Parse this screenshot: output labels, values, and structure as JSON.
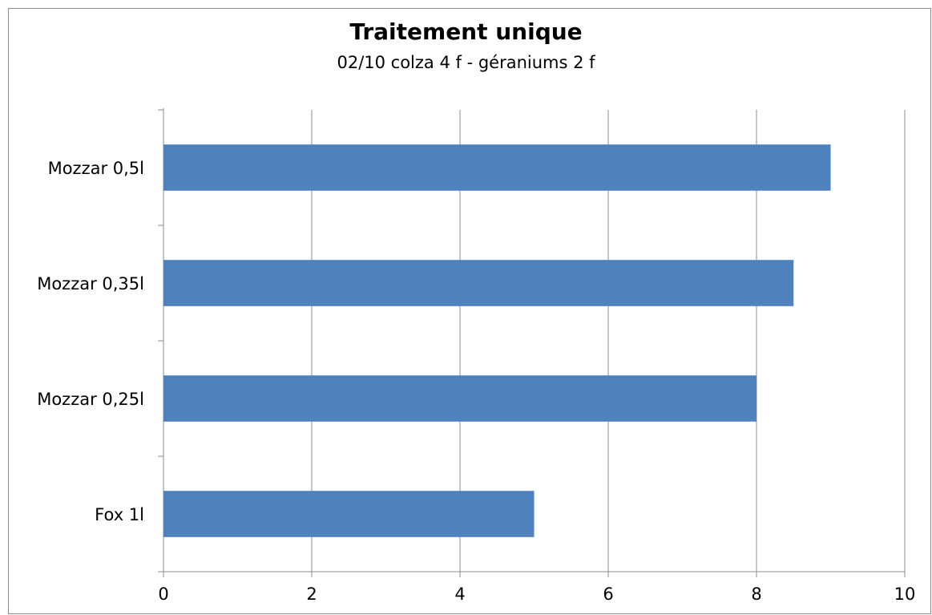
{
  "chart_data": {
    "type": "bar",
    "orientation": "horizontal",
    "title": "Traitement unique",
    "subtitle": "02/10 colza 4 f - géraniums 2 f",
    "categories": [
      "Mozzar 0,5l",
      "Mozzar 0,35l",
      "Mozzar 0,25l",
      "Fox 1l"
    ],
    "values": [
      9,
      8.5,
      8,
      5
    ],
    "xlim": [
      0,
      10
    ],
    "xticks": [
      "0",
      "2",
      "4",
      "6",
      "8",
      "10"
    ],
    "grid": true,
    "legend": "none",
    "bar_color": "#4f81bd"
  }
}
